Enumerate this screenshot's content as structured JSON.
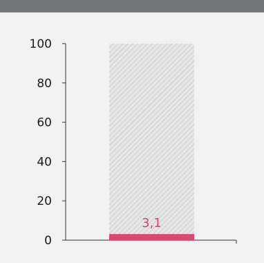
{
  "header": {
    "title": ""
  },
  "colors": {
    "header_bg": "#747679",
    "background": "#f2f2f2",
    "bar": "#e0456e",
    "value_label": "#d9426a",
    "hatch": "#d2d2d2",
    "axis": "#333333"
  },
  "chart_data": {
    "type": "bar",
    "categories": [
      ""
    ],
    "values": [
      3.1
    ],
    "value_labels": [
      "3,1"
    ],
    "background_bar_max": 100,
    "ylim": [
      0,
      100
    ],
    "yticks": [
      0,
      20,
      40,
      60,
      80,
      100
    ],
    "ytick_labels": [
      "0",
      "20",
      "40",
      "60",
      "80",
      "100"
    ],
    "title": "",
    "xlabel": "",
    "ylabel": "",
    "grid": false,
    "legend": "none"
  }
}
